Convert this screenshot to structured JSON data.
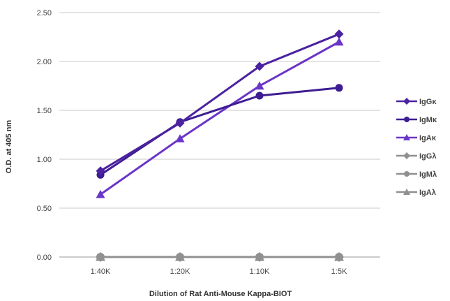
{
  "chart_data": {
    "type": "line",
    "title": "",
    "xlabel": "Dilution of Rat Anti-Mouse Kappa-BIOT",
    "ylabel": "O.D. at 405 nm",
    "categories": [
      "1:40K",
      "1:20K",
      "1:10K",
      "1:5K"
    ],
    "ylim": [
      0,
      2.5
    ],
    "yticks": [
      "0.00",
      "0.50",
      "1.00",
      "1.50",
      "2.00",
      "2.50"
    ],
    "grid": true,
    "legend_position": "right",
    "series": [
      {
        "name": "IgGκ",
        "values": [
          0.88,
          1.37,
          1.95,
          2.28
        ],
        "color": "#4b22a0",
        "marker": "diamond"
      },
      {
        "name": "IgMκ",
        "values": [
          0.84,
          1.38,
          1.65,
          1.73
        ],
        "color": "#3e1c94",
        "marker": "circle"
      },
      {
        "name": "IgAκ",
        "values": [
          0.64,
          1.21,
          1.75,
          2.2
        ],
        "color": "#6a35c8",
        "marker": "triangle"
      },
      {
        "name": "IgGλ",
        "values": [
          0.0,
          0.0,
          0.0,
          0.0
        ],
        "color": "#909090",
        "marker": "diamond"
      },
      {
        "name": "IgMλ",
        "values": [
          0.0,
          0.0,
          0.0,
          0.0
        ],
        "color": "#909090",
        "marker": "circle"
      },
      {
        "name": "IgAλ",
        "values": [
          0.0,
          0.0,
          0.0,
          0.0
        ],
        "color": "#909090",
        "marker": "triangle"
      }
    ]
  }
}
